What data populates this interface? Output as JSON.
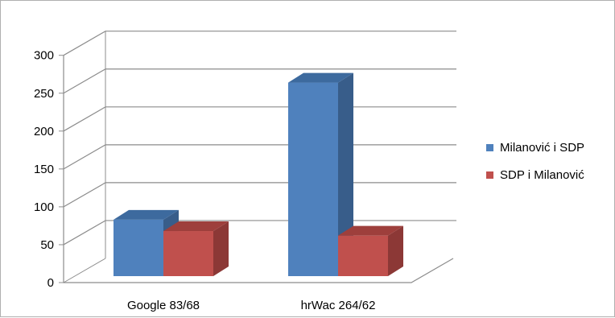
{
  "chart_data": {
    "type": "bar",
    "style": "3d-clustered-column",
    "categories": [
      "Google 83/68",
      "hrWac 264/62"
    ],
    "series": [
      {
        "name": "Milanović i SDP",
        "values": [
          83,
          264
        ],
        "color": "#4f81bd",
        "side_color": "#385d8a",
        "top_color": "#3d6a9e"
      },
      {
        "name": "SDP i Milanović",
        "values": [
          68,
          62
        ],
        "color": "#c0504d",
        "side_color": "#8c3836",
        "top_color": "#9e3f3c"
      }
    ],
    "yticks": [
      0,
      50,
      100,
      150,
      200,
      250,
      300
    ],
    "ylim": [
      0,
      300
    ],
    "grid": true,
    "legend_position": "right",
    "title": "",
    "xlabel": "",
    "ylabel": ""
  }
}
